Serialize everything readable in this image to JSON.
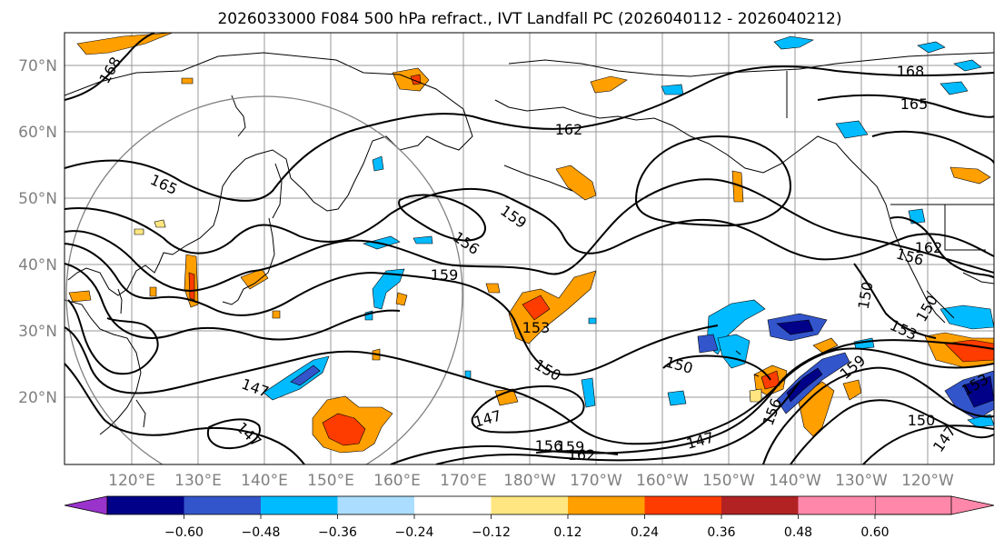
{
  "title": "2026033000 F084 500 hPa refract., IVT Landfall PC (2026040112 - 2026040212)",
  "map": {
    "lat_labels": [
      "70°N",
      "60°N",
      "50°N",
      "40°N",
      "30°N",
      "20°N"
    ],
    "lon_labels": [
      "120°E",
      "130°E",
      "140°E",
      "150°E",
      "160°E",
      "170°E",
      "180°W",
      "170°W",
      "160°W",
      "150°W",
      "140°W",
      "130°W",
      "120°W"
    ],
    "contour_labels": [
      "168",
      "165",
      "162",
      "159",
      "156",
      "153",
      "150",
      "147",
      "168",
      "165",
      "162",
      "156",
      "150",
      "150",
      "153",
      "159",
      "156",
      "150",
      "147",
      "147",
      "156",
      "159",
      "162",
      "147",
      "153",
      "150",
      "147",
      "159"
    ]
  },
  "colorbar": {
    "tick_labels": [
      "−0.60",
      "−0.48",
      "−0.36",
      "−0.24",
      "−0.12",
      "0.12",
      "0.24",
      "0.36",
      "0.48",
      "0.60"
    ],
    "colors": [
      "#9933cc",
      "#000088",
      "#3355cc",
      "#00bbff",
      "#aaddff",
      "#ffffff",
      "#ffe680",
      "#ff9f00",
      "#ff3c00",
      "#b22222",
      "#ff88aa"
    ]
  }
}
